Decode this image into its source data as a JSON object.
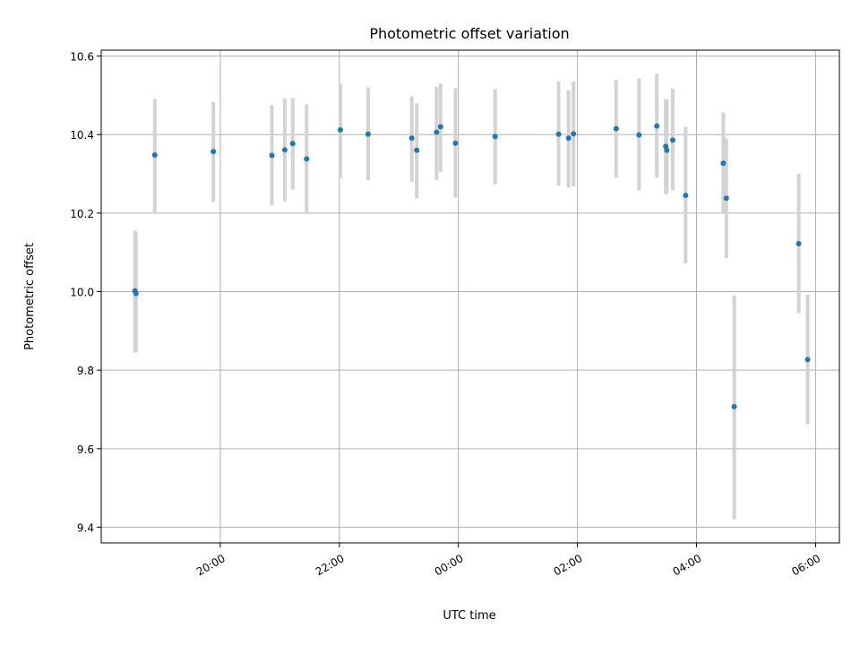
{
  "chart_data": {
    "type": "scatter",
    "title": "Photometric offset variation",
    "xlabel": "UTC time",
    "ylabel": "Photometric offset",
    "x_unit": "UTC time of night, HH:MM",
    "xlim": [
      "18:00",
      "06:24"
    ],
    "ylim": [
      9.36,
      10.615
    ],
    "grid": true,
    "point_color": "#1f77b4",
    "errorbar_color": "#d3d3d3",
    "x_ticks": [
      {
        "t": "20:00",
        "label": "20:00"
      },
      {
        "t": "22:00",
        "label": "22:00"
      },
      {
        "t": "00:00",
        "label": "00:00"
      },
      {
        "t": "02:00",
        "label": "02:00"
      },
      {
        "t": "04:00",
        "label": "04:00"
      },
      {
        "t": "06:00",
        "label": "06:00"
      }
    ],
    "y_ticks": [
      {
        "v": 9.4,
        "label": "9.4"
      },
      {
        "v": 9.6,
        "label": "9.6"
      },
      {
        "v": 9.8,
        "label": "9.8"
      },
      {
        "v": 10.0,
        "label": "10.0"
      },
      {
        "v": 10.2,
        "label": "10.2"
      },
      {
        "v": 10.4,
        "label": "10.4"
      },
      {
        "v": 10.6,
        "label": "10.6"
      }
    ],
    "points": [
      {
        "t": "18:34",
        "y": 10.002,
        "lo": 9.845,
        "hi": 10.155
      },
      {
        "t": "18:35",
        "y": 9.995,
        "lo": 9.845,
        "hi": 10.15
      },
      {
        "t": "18:54",
        "y": 10.348,
        "lo": 10.2,
        "hi": 10.49
      },
      {
        "t": "19:53",
        "y": 10.357,
        "lo": 10.228,
        "hi": 10.483
      },
      {
        "t": "20:52",
        "y": 10.347,
        "lo": 10.22,
        "hi": 10.475
      },
      {
        "t": "21:05",
        "y": 10.361,
        "lo": 10.23,
        "hi": 10.492
      },
      {
        "t": "21:13",
        "y": 10.377,
        "lo": 10.26,
        "hi": 10.493
      },
      {
        "t": "21:27",
        "y": 10.338,
        "lo": 10.2,
        "hi": 10.477
      },
      {
        "t": "22:01",
        "y": 10.412,
        "lo": 10.29,
        "hi": 10.53
      },
      {
        "t": "22:29",
        "y": 10.401,
        "lo": 10.283,
        "hi": 10.52
      },
      {
        "t": "23:13",
        "y": 10.391,
        "lo": 10.28,
        "hi": 10.497
      },
      {
        "t": "23:18",
        "y": 10.36,
        "lo": 10.237,
        "hi": 10.48
      },
      {
        "t": "23:38",
        "y": 10.406,
        "lo": 10.285,
        "hi": 10.522
      },
      {
        "t": "23:42",
        "y": 10.42,
        "lo": 10.305,
        "hi": 10.53
      },
      {
        "t": "23:57",
        "y": 10.378,
        "lo": 10.24,
        "hi": 10.518
      },
      {
        "t": "00:37",
        "y": 10.395,
        "lo": 10.273,
        "hi": 10.516
      },
      {
        "t": "01:41",
        "y": 10.401,
        "lo": 10.27,
        "hi": 10.535
      },
      {
        "t": "01:51",
        "y": 10.391,
        "lo": 10.265,
        "hi": 10.513
      },
      {
        "t": "01:56",
        "y": 10.402,
        "lo": 10.268,
        "hi": 10.535
      },
      {
        "t": "02:39",
        "y": 10.415,
        "lo": 10.29,
        "hi": 10.54
      },
      {
        "t": "03:02",
        "y": 10.399,
        "lo": 10.257,
        "hi": 10.543
      },
      {
        "t": "03:20",
        "y": 10.422,
        "lo": 10.29,
        "hi": 10.555
      },
      {
        "t": "03:29",
        "y": 10.37,
        "lo": 10.248,
        "hi": 10.49
      },
      {
        "t": "03:30",
        "y": 10.36,
        "lo": 10.248,
        "hi": 10.49
      },
      {
        "t": "03:36",
        "y": 10.386,
        "lo": 10.258,
        "hi": 10.517
      },
      {
        "t": "03:49",
        "y": 10.245,
        "lo": 10.072,
        "hi": 10.42
      },
      {
        "t": "04:27",
        "y": 10.327,
        "lo": 10.2,
        "hi": 10.456
      },
      {
        "t": "04:30",
        "y": 10.238,
        "lo": 10.085,
        "hi": 10.39
      },
      {
        "t": "04:38",
        "y": 9.707,
        "lo": 9.42,
        "hi": 9.99
      },
      {
        "t": "05:43",
        "y": 10.122,
        "lo": 9.945,
        "hi": 10.3
      },
      {
        "t": "05:52",
        "y": 9.827,
        "lo": 9.662,
        "hi": 9.992
      }
    ]
  }
}
